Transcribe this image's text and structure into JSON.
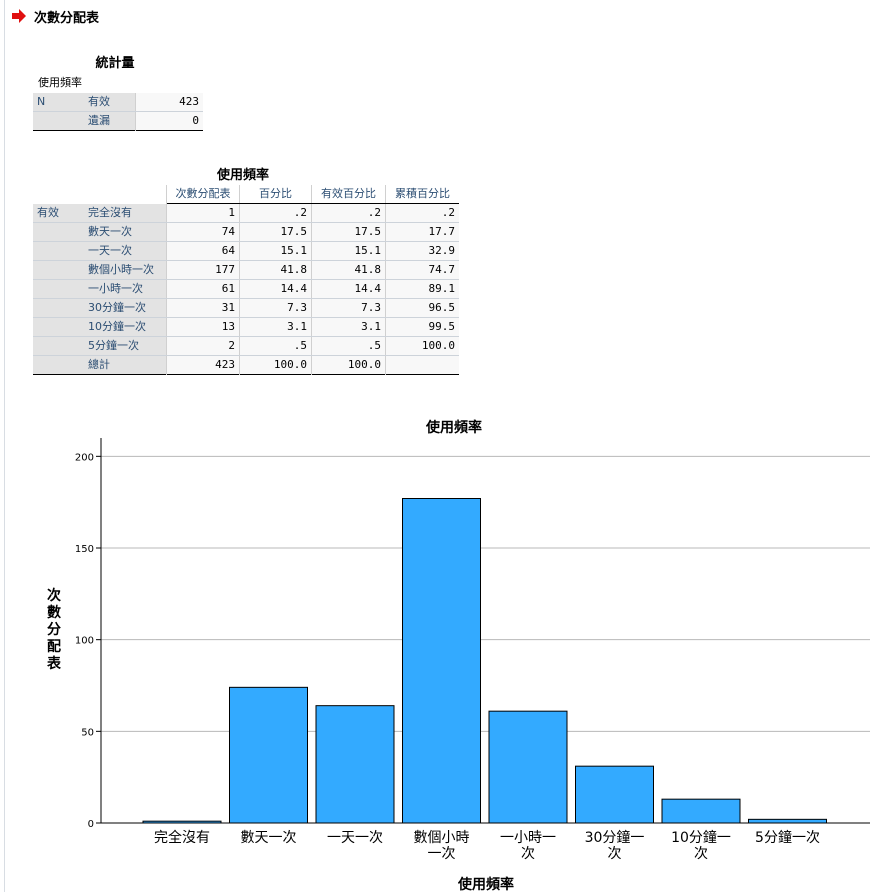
{
  "header": {
    "title": "次數分配表"
  },
  "stats": {
    "title": "統計量",
    "variable": "使用頻率",
    "rows": [
      {
        "group": "N",
        "label": "有效",
        "value": "423"
      },
      {
        "group": "",
        "label": "遺漏",
        "value": "0"
      }
    ]
  },
  "freq": {
    "title": "使用頻率",
    "group_label": "有效",
    "columns": [
      "次數分配表",
      "百分比",
      "有效百分比",
      "累積百分比"
    ],
    "rows": [
      {
        "label": "完全沒有",
        "cells": [
          "1",
          ".2",
          ".2",
          ".2"
        ]
      },
      {
        "label": "數天一次",
        "cells": [
          "74",
          "17.5",
          "17.5",
          "17.7"
        ]
      },
      {
        "label": "一天一次",
        "cells": [
          "64",
          "15.1",
          "15.1",
          "32.9"
        ]
      },
      {
        "label": "數個小時一次",
        "cells": [
          "177",
          "41.8",
          "41.8",
          "74.7"
        ]
      },
      {
        "label": "一小時一次",
        "cells": [
          "61",
          "14.4",
          "14.4",
          "89.1"
        ]
      },
      {
        "label": "30分鐘一次",
        "cells": [
          "31",
          "7.3",
          "7.3",
          "96.5"
        ]
      },
      {
        "label": "10分鐘一次",
        "cells": [
          "13",
          "3.1",
          "3.1",
          "99.5"
        ]
      },
      {
        "label": "5分鐘一次",
        "cells": [
          "2",
          ".5",
          ".5",
          "100.0"
        ]
      },
      {
        "label": "總計",
        "cells": [
          "423",
          "100.0",
          "100.0",
          ""
        ]
      }
    ]
  },
  "chart_data": {
    "type": "bar",
    "title": "使用頻率",
    "xlabel": "使用頻率",
    "ylabel": "次數分配表",
    "categories": [
      [
        "完全沒有"
      ],
      [
        "數天一次"
      ],
      [
        "一天一次"
      ],
      [
        "數個小時",
        "一次"
      ],
      [
        "一小時一",
        "次"
      ],
      [
        "30分鐘一",
        "次"
      ],
      [
        "10分鐘一",
        "次"
      ],
      [
        "5分鐘一次"
      ]
    ],
    "values": [
      1,
      74,
      64,
      177,
      61,
      31,
      13,
      2
    ],
    "ylim": [
      0,
      210
    ],
    "yticks": [
      0,
      50,
      100,
      150,
      200
    ],
    "grid": true,
    "bar_color": "#33aaff"
  }
}
